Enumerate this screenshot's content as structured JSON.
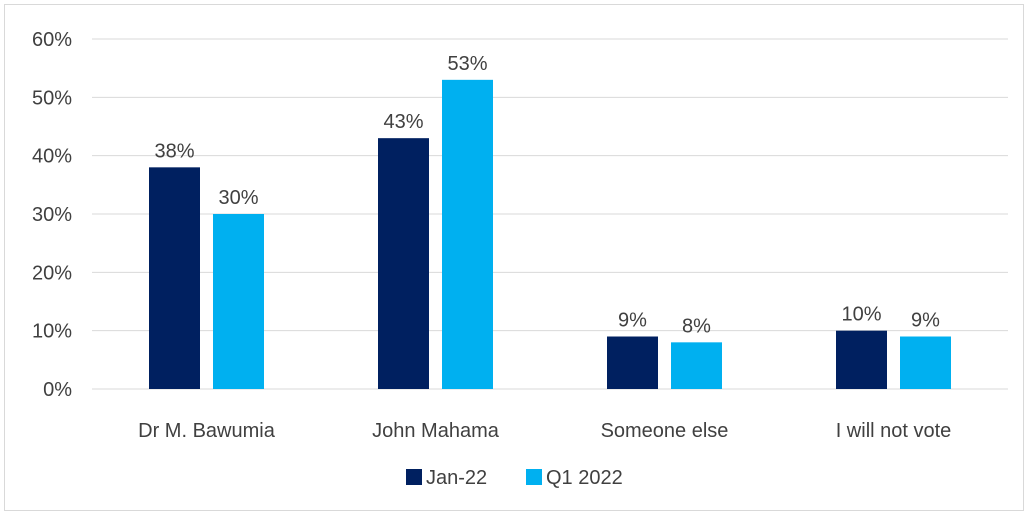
{
  "chart_data": {
    "type": "bar",
    "title": "",
    "xlabel": "",
    "ylabel": "",
    "categories": [
      "Dr M. Bawumia",
      "John Mahama",
      "Someone else",
      "I will not vote"
    ],
    "series": [
      {
        "name": "Jan-22",
        "values": [
          38,
          43,
          9,
          10
        ],
        "color": "#002060",
        "labels": [
          "38%",
          "43%",
          "9%",
          "10%"
        ]
      },
      {
        "name": "Q1 2022",
        "values": [
          30,
          53,
          8,
          9
        ],
        "color": "#00B0F0",
        "labels": [
          "30%",
          "53%",
          "8%",
          "9%"
        ]
      }
    ],
    "ylim": [
      0,
      60
    ],
    "yticks": [
      0,
      10,
      20,
      30,
      40,
      50,
      60
    ],
    "ytick_labels": [
      "0%",
      "10%",
      "20%",
      "30%",
      "40%",
      "50%",
      "60%"
    ],
    "grid": true,
    "legend_position": "bottom",
    "colors": {
      "gridline": "#d9d9d9",
      "axis": "#d9d9d9",
      "text": "#404040"
    }
  }
}
